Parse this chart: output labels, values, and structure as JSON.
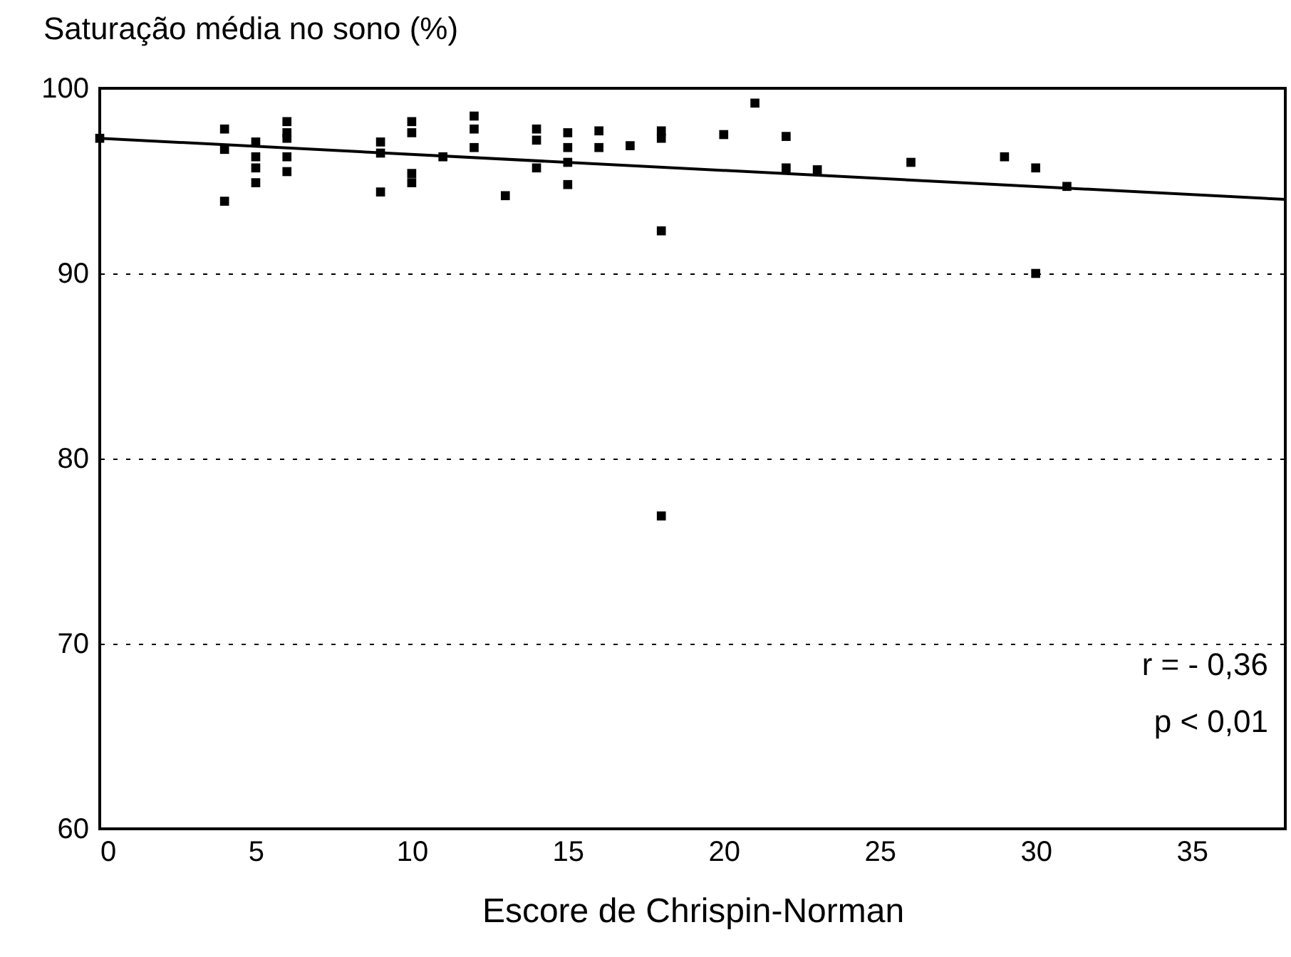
{
  "chart_data": {
    "type": "scatter",
    "ylabel": "Saturação média no sono (%)",
    "xlabel": "Escore de Chrispin-Norman",
    "xlim": [
      0,
      38
    ],
    "ylim": [
      60,
      100
    ],
    "xticks": [
      0,
      5,
      10,
      15,
      20,
      25,
      30,
      35
    ],
    "yticks": [
      60,
      70,
      80,
      90,
      100
    ],
    "grid": "y",
    "series": [
      {
        "color": "#000000",
        "marker": "square",
        "x": [
          0,
          4,
          4,
          4,
          5,
          5,
          5,
          5,
          6,
          6,
          6,
          6,
          6,
          9,
          9,
          9,
          10,
          10,
          10,
          10,
          11,
          12,
          12,
          12,
          13,
          14,
          14,
          14,
          15,
          15,
          15,
          15,
          16,
          16,
          17,
          18,
          18,
          18,
          18,
          20,
          21,
          22,
          22,
          23,
          26,
          29,
          30,
          30,
          31
        ],
        "values": [
          97.3,
          97.8,
          96.7,
          93.9,
          97.1,
          96.3,
          95.7,
          94.9,
          98.2,
          97.6,
          97.3,
          96.3,
          95.5,
          97.1,
          96.5,
          94.4,
          98.2,
          97.6,
          95.4,
          94.9,
          96.3,
          98.5,
          97.8,
          96.8,
          94.2,
          97.8,
          97.2,
          95.7,
          97.6,
          96.8,
          96.0,
          94.8,
          97.7,
          96.8,
          96.9,
          97.7,
          97.3,
          92.3,
          76.9,
          97.5,
          99.2,
          97.4,
          95.7,
          95.6,
          96.0,
          96.3,
          95.7,
          90.0,
          94.7
        ]
      },
      {
        "type": "line",
        "color": "#000000",
        "x": [
          0,
          38
        ],
        "values": [
          97.3,
          94.0
        ]
      }
    ],
    "annotations": [
      "r = - 0,36",
      "p < 0,01"
    ]
  }
}
